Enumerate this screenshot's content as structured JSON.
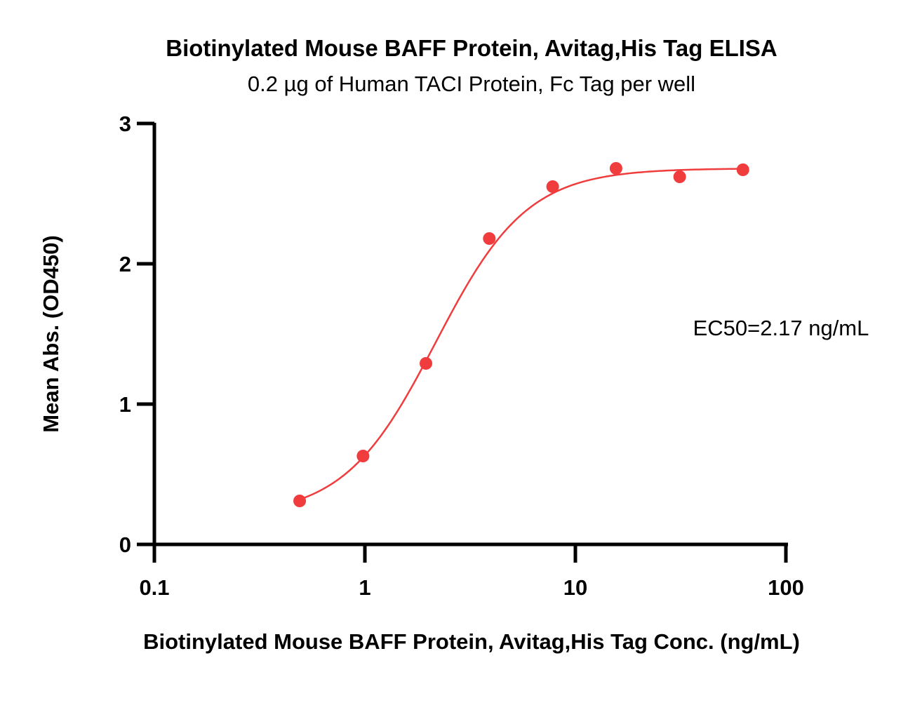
{
  "chart_data": {
    "type": "scatter",
    "title": "Biotinylated Mouse BAFF Protein, Avitag,His Tag ELISA",
    "subtitle": "0.2 µg of Human TACI Protein, Fc Tag per well",
    "xlabel": "Biotinylated Mouse BAFF Protein, Avitag,His Tag Conc. (ng/mL)",
    "ylabel": "Mean Abs. (OD450)",
    "x_scale": "log",
    "xlim": [
      0.1,
      100
    ],
    "ylim": [
      0,
      3
    ],
    "x_ticks": [
      "0.1",
      "1",
      "10",
      "100"
    ],
    "y_ticks": [
      "0",
      "1",
      "2",
      "3"
    ],
    "grid": false,
    "annotation": "EC50=2.17 ng/mL",
    "colors": {
      "series": "#f03c3c",
      "axis": "#000000"
    },
    "series": [
      {
        "points": [
          {
            "x": 0.49,
            "y": 0.31
          },
          {
            "x": 0.98,
            "y": 0.63
          },
          {
            "x": 1.95,
            "y": 1.29
          },
          {
            "x": 3.9,
            "y": 2.18
          },
          {
            "x": 7.8,
            "y": 2.55
          },
          {
            "x": 15.6,
            "y": 2.68
          },
          {
            "x": 31.3,
            "y": 2.62
          },
          {
            "x": 62.5,
            "y": 2.67
          }
        ],
        "fit": {
          "model": "4PL",
          "bottom": 0.2,
          "top": 2.68,
          "ec50": 2.17,
          "hill": 2.0
        }
      }
    ]
  }
}
